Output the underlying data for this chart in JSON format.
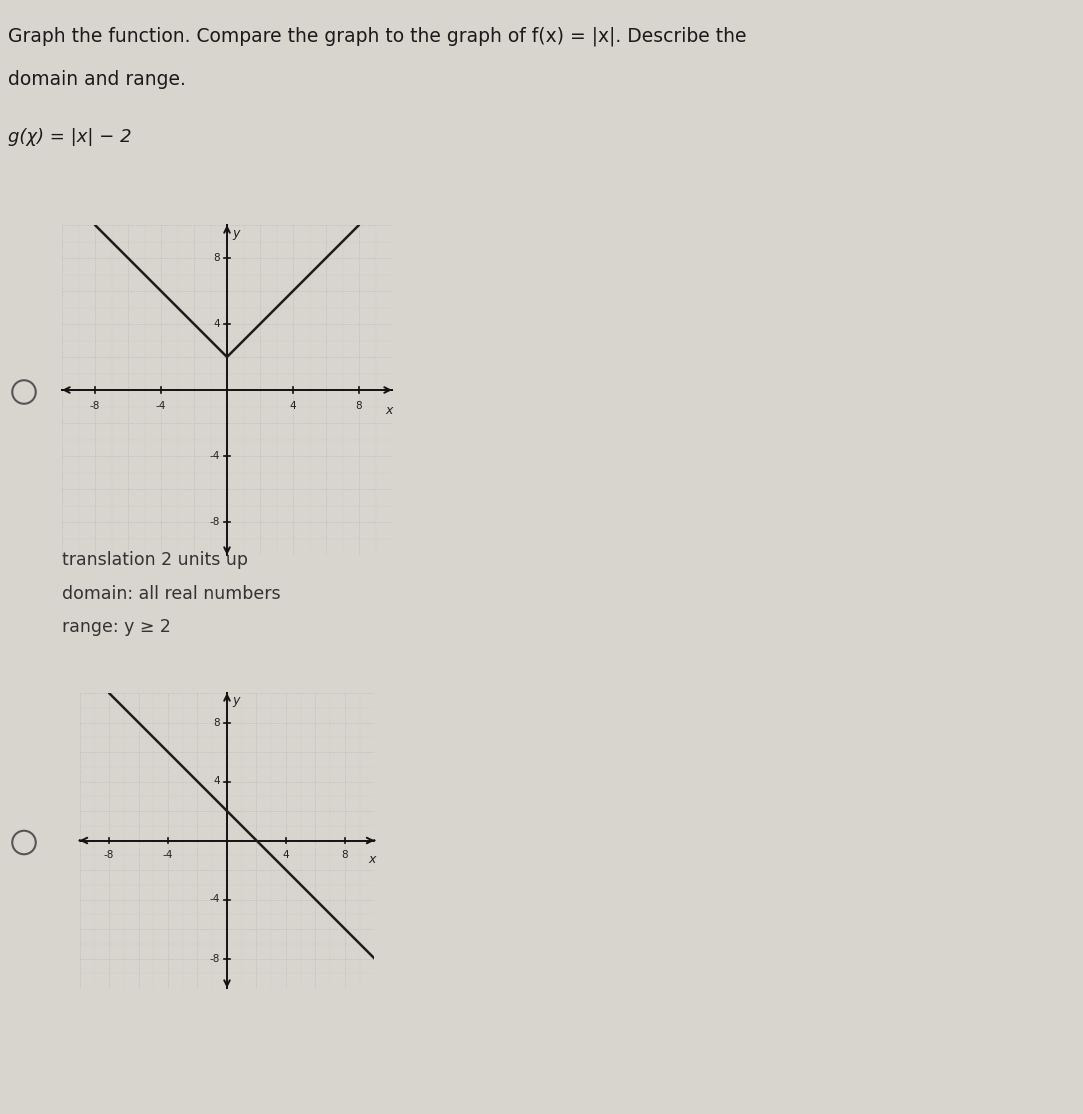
{
  "title_line1": "Graph the function. Compare the graph to the graph of f(x) = |x|. Describe the",
  "title_line2": "domain and range.",
  "equation": "g(χ) = |x| − 2",
  "bg_color": "#d8d4ce",
  "option1_texts": [
    "translation 2 units up",
    "domain: all real numbers",
    "range: y ≥ 2"
  ],
  "graph1_vertex_y": 2,
  "xlim": [
    -10,
    10
  ],
  "ylim": [
    -10,
    10
  ],
  "xtick_labels": [
    -8,
    -4,
    4,
    8
  ],
  "ytick_labels": [
    -8,
    -4,
    4,
    8
  ]
}
